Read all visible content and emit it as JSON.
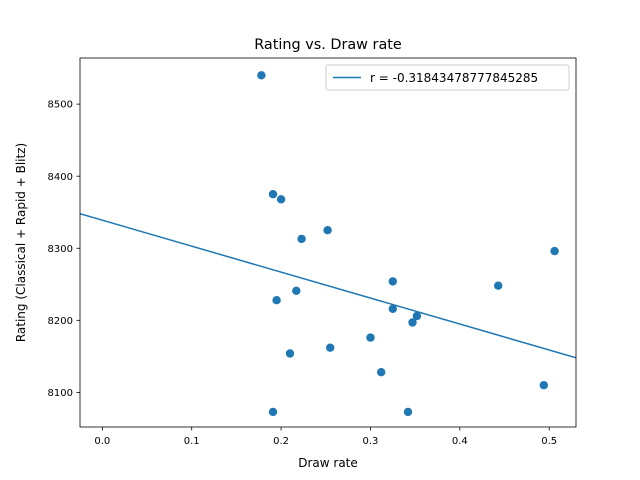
{
  "chart_data": {
    "type": "scatter",
    "title": "Rating vs. Draw rate",
    "xlabel": "Draw rate",
    "ylabel": "Rating (Classical + Rapid + Blitz)",
    "xlim": [
      -0.025,
      0.53
    ],
    "ylim": [
      8052,
      8564
    ],
    "xticks": [
      0.0,
      0.1,
      0.2,
      0.3,
      0.4,
      0.5
    ],
    "xtick_labels": [
      "0.0",
      "0.1",
      "0.2",
      "0.3",
      "0.4",
      "0.5"
    ],
    "yticks": [
      8100,
      8200,
      8300,
      8400,
      8500
    ],
    "ytick_labels": [
      "8100",
      "8200",
      "8300",
      "8400",
      "8500"
    ],
    "grid": false,
    "legend_position": "top-right",
    "colors": {
      "points": "#1f77b4",
      "line": "#1f77b4"
    },
    "series": [
      {
        "kind": "scatter",
        "x": [
          0.178,
          0.191,
          0.2,
          0.223,
          0.252,
          0.325,
          0.506,
          0.443,
          0.217,
          0.195,
          0.325,
          0.352,
          0.347,
          0.3,
          0.255,
          0.21,
          0.312,
          0.494,
          0.191,
          0.342
        ],
        "y": [
          8540,
          8375,
          8368,
          8313,
          8325,
          8254,
          8296,
          8248,
          8241,
          8228,
          8216,
          8206,
          8197,
          8176,
          8162,
          8154,
          8128,
          8110,
          8073,
          8073
        ]
      },
      {
        "kind": "line",
        "name": "r = -0.31843478777845285",
        "x": [
          -0.025,
          0.53
        ],
        "y": [
          8348,
          8148
        ]
      }
    ]
  }
}
